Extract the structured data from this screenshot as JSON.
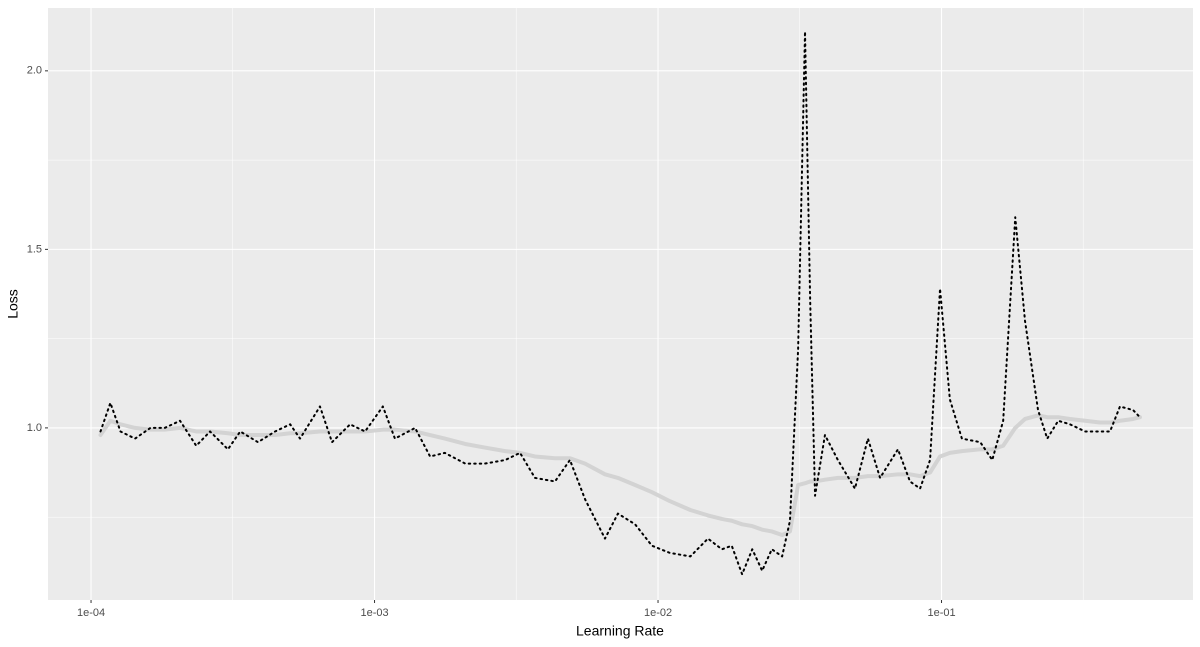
{
  "chart_data": {
    "type": "line",
    "x_label": "Learning Rate",
    "y_label": "Loss",
    "x": [
      0.000108,
      0.000117,
      0.000127,
      0.000143,
      0.000162,
      0.000182,
      0.000206,
      0.000235,
      0.000263,
      0.000304,
      0.000336,
      0.000388,
      0.000446,
      0.000504,
      0.000546,
      0.000642,
      0.000708,
      0.00082,
      0.000926,
      0.00107,
      0.00118,
      0.00139,
      0.00157,
      0.00177,
      0.00209,
      0.00245,
      0.00289,
      0.00326,
      0.00368,
      0.00433,
      0.00489,
      0.00553,
      0.0065,
      0.00722,
      0.0083,
      0.00952,
      0.011,
      0.013,
      0.015,
      0.0168,
      0.0182,
      0.0198,
      0.0215,
      0.0233,
      0.0252,
      0.0274,
      0.0292,
      0.0312,
      0.033,
      0.0344,
      0.0358,
      0.0388,
      0.0431,
      0.0495,
      0.055,
      0.0607,
      0.0702,
      0.0774,
      0.084,
      0.0911,
      0.0988,
      0.107,
      0.118,
      0.137,
      0.151,
      0.165,
      0.182,
      0.197,
      0.219,
      0.236,
      0.258,
      0.284,
      0.321,
      0.362,
      0.393,
      0.426,
      0.474,
      0.501
    ],
    "series": [
      {
        "color": "#d3d3d3",
        "linestyle": "solid",
        "values": [
          0.98,
          1.02,
          1.01,
          1.0,
          0.995,
          0.995,
          1.0,
          0.99,
          0.99,
          0.985,
          0.98,
          0.98,
          0.98,
          0.985,
          0.985,
          0.99,
          0.99,
          0.99,
          0.99,
          0.995,
          0.995,
          0.99,
          0.98,
          0.97,
          0.955,
          0.945,
          0.935,
          0.93,
          0.92,
          0.915,
          0.915,
          0.9,
          0.87,
          0.86,
          0.84,
          0.82,
          0.795,
          0.77,
          0.755,
          0.745,
          0.74,
          0.73,
          0.725,
          0.715,
          0.71,
          0.7,
          0.71,
          0.84,
          0.845,
          0.85,
          0.85,
          0.855,
          0.86,
          0.86,
          0.865,
          0.865,
          0.87,
          0.87,
          0.865,
          0.875,
          0.92,
          0.93,
          0.935,
          0.94,
          0.94,
          0.95,
          1.0,
          1.025,
          1.035,
          1.03,
          1.03,
          1.025,
          1.02,
          1.015,
          1.015,
          1.02,
          1.025,
          1.03
        ]
      },
      {
        "color": "#000000",
        "linestyle": "dotted",
        "values": [
          0.99,
          1.07,
          0.99,
          0.97,
          1.0,
          1.0,
          1.02,
          0.95,
          0.99,
          0.94,
          0.99,
          0.96,
          0.99,
          1.01,
          0.97,
          1.06,
          0.96,
          1.01,
          0.99,
          1.06,
          0.97,
          1.0,
          0.92,
          0.93,
          0.9,
          0.9,
          0.91,
          0.93,
          0.86,
          0.85,
          0.91,
          0.8,
          0.69,
          0.76,
          0.73,
          0.67,
          0.65,
          0.64,
          0.69,
          0.66,
          0.67,
          0.59,
          0.66,
          0.6,
          0.66,
          0.64,
          0.74,
          1.22,
          2.11,
          1.36,
          0.81,
          0.98,
          0.91,
          0.83,
          0.97,
          0.86,
          0.94,
          0.85,
          0.83,
          0.91,
          1.39,
          1.08,
          0.97,
          0.96,
          0.91,
          1.02,
          1.59,
          1.3,
          1.05,
          0.97,
          1.02,
          1.01,
          0.99,
          0.99,
          0.99,
          1.06,
          1.05,
          1.03
        ]
      }
    ],
    "x_log": true,
    "xlim": [
      7.05e-05,
      0.771
    ],
    "xticks": [
      {
        "value": 0.0001,
        "label": "1e-04"
      },
      {
        "value": 0.001,
        "label": "1e-03"
      },
      {
        "value": 0.01,
        "label": "1e-02"
      },
      {
        "value": 0.1,
        "label": "1e-01"
      }
    ],
    "xminor_ticks": [
      0.000316,
      0.00316,
      0.0316,
      0.316
    ],
    "ylim": [
      0.518,
      2.176
    ],
    "yticks": [
      {
        "value": 1,
        "label": "1.0"
      },
      1.5,
      {
        "value": 2,
        "label": "2.0"
      }
    ],
    "yminor_ticks": [
      0.75,
      1.25,
      1.75
    ],
    "grid": true
  }
}
